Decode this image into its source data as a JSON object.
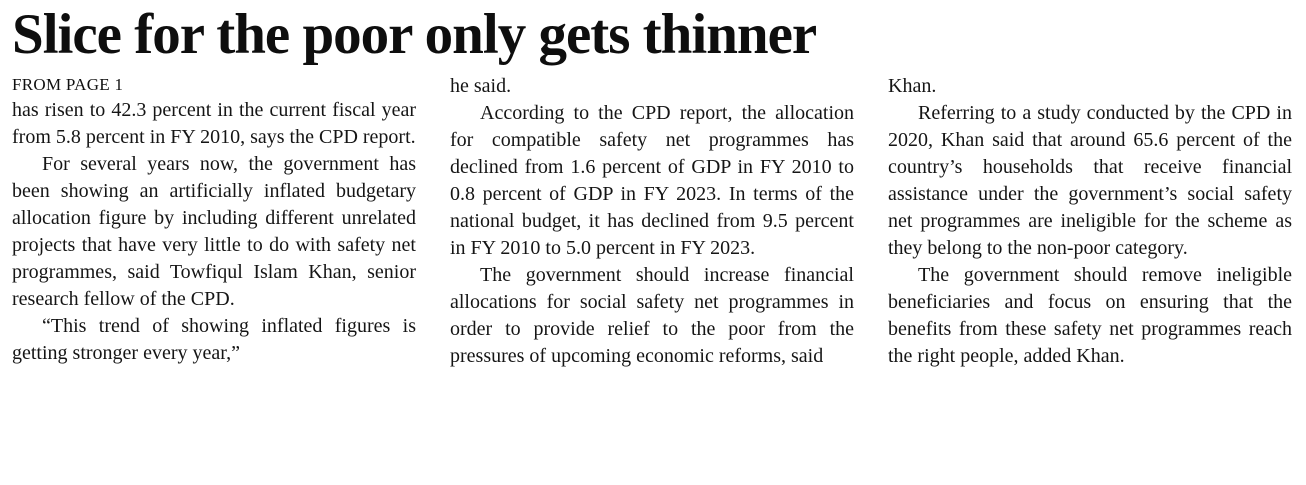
{
  "article": {
    "headline": "Slice for the poor only gets thinner",
    "kicker": "FROM PAGE 1",
    "columns": [
      {
        "paragraphs": [
          "has risen to 42.3 percent in the current fiscal year from 5.8 percent in FY 2010, says the CPD report.",
          "For several years now, the government has been showing an artificially inflated budgetary allocation figure by including different unrelated projects that have very little to do with safety net programmes, said Towfiqul Islam Khan, senior research fellow of the CPD.",
          "“This trend of showing inflated figures is getting stronger every year,”"
        ]
      },
      {
        "paragraphs": [
          "he said.",
          "According to the CPD report, the allocation for compatible safety net programmes has declined from 1.6 percent of GDP in FY 2010 to 0.8 percent of GDP in FY 2023. In terms of the national budget, it has declined from 9.5 percent in FY 2010 to 5.0 percent in FY 2023.",
          "The government should increase financial allocations for social safety net programmes in order to provide relief to the poor from the pressures of upcoming economic reforms, said"
        ]
      },
      {
        "paragraphs": [
          "Khan.",
          "Referring to a study conducted by the CPD in 2020, Khan said that around 65.6 percent of the country’s households that receive financial assistance under the government’s social safety net programmes are ineligible for the scheme as they belong to the non-poor category.",
          "The government should remove ineligible beneficiaries and focus on ensuring that the benefits from these safety net programmes reach the right people, added Khan."
        ]
      }
    ]
  }
}
